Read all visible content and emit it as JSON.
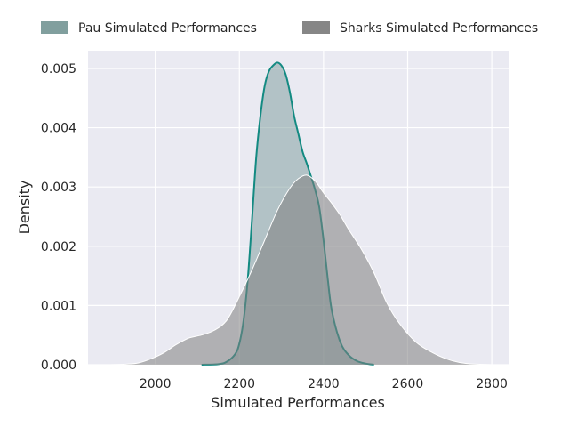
{
  "chart_data": {
    "type": "area",
    "title": "",
    "xlabel": "Simulated Performances",
    "ylabel": "Density",
    "xlim": [
      1840,
      2840
    ],
    "ylim": [
      0,
      0.0053
    ],
    "grid": true,
    "legend_position": "top",
    "x_ticks": [
      2000,
      2200,
      2400,
      2600,
      2800
    ],
    "x_tick_labels": [
      "2000",
      "2200",
      "2400",
      "2600",
      "2800"
    ],
    "y_ticks": [
      0,
      0.001,
      0.002,
      0.003,
      0.004,
      0.005
    ],
    "y_tick_labels": [
      "0.000",
      "0.001",
      "0.002",
      "0.003",
      "0.004",
      "0.005"
    ],
    "series": [
      {
        "name": "Pau Simulated Performances",
        "fill_color": "#7a9a99",
        "line_color": "#138a82",
        "x": [
          2110,
          2150,
          2170,
          2190,
          2200,
          2210,
          2220,
          2230,
          2240,
          2250,
          2260,
          2270,
          2280,
          2290,
          2300,
          2310,
          2320,
          2330,
          2340,
          2350,
          2360,
          2370,
          2380,
          2390,
          2400,
          2410,
          2420,
          2440,
          2460,
          2480,
          2500,
          2520
        ],
        "y": [
          0,
          1e-05,
          5e-05,
          0.00018,
          0.00036,
          0.00075,
          0.00145,
          0.00245,
          0.0035,
          0.0042,
          0.0047,
          0.00495,
          0.00505,
          0.0051,
          0.00505,
          0.0049,
          0.0046,
          0.0042,
          0.0039,
          0.0036,
          0.0034,
          0.00318,
          0.00295,
          0.00265,
          0.0021,
          0.00145,
          0.0009,
          0.00038,
          0.00016,
          6e-05,
          2e-05,
          0
        ]
      },
      {
        "name": "Sharks Simulated Performances",
        "fill_color": "#808080",
        "line_color": "#ffffff",
        "x": [
          1890,
          1930,
          1960,
          1990,
          2020,
          2050,
          2080,
          2110,
          2140,
          2170,
          2200,
          2230,
          2260,
          2290,
          2320,
          2340,
          2360,
          2380,
          2400,
          2420,
          2440,
          2460,
          2490,
          2520,
          2550,
          2580,
          2620,
          2660,
          2700,
          2740,
          2800
        ],
        "y": [
          0,
          1e-05,
          3e-05,
          0.0001,
          0.0002,
          0.00034,
          0.00045,
          0.0005,
          0.00058,
          0.00075,
          0.00115,
          0.0016,
          0.0021,
          0.0026,
          0.00298,
          0.00314,
          0.0032,
          0.0031,
          0.0029,
          0.00272,
          0.00252,
          0.00228,
          0.00195,
          0.00155,
          0.00105,
          0.0007,
          0.00038,
          0.0002,
          8e-05,
          2e-05,
          0
        ]
      }
    ]
  }
}
